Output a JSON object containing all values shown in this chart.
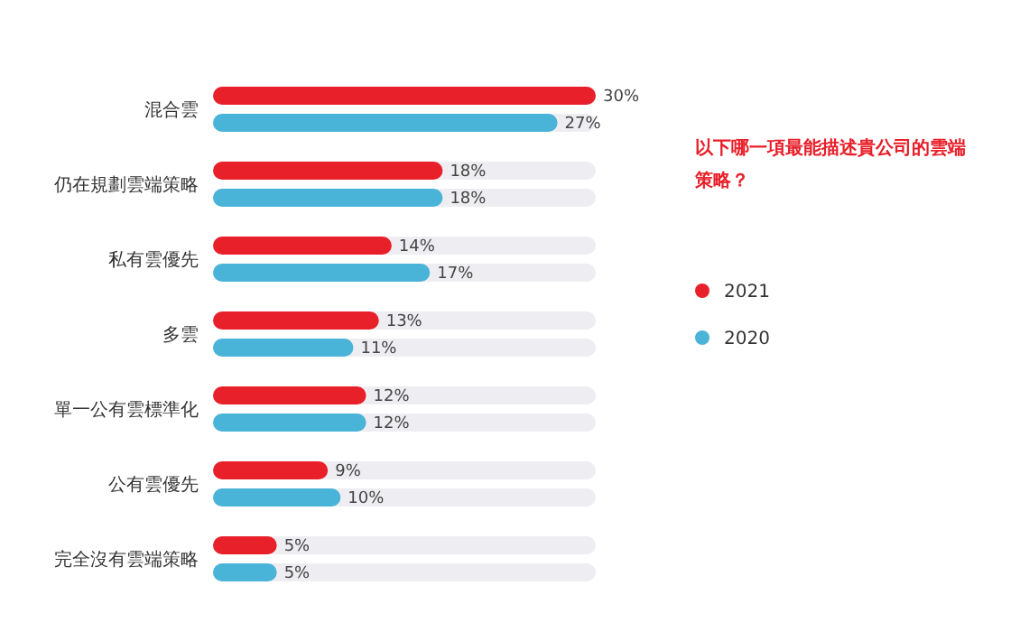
{
  "chart_data": {
    "type": "bar",
    "orientation": "horizontal",
    "legend_title": "以下哪一項最能描述貴公司的雲端策略？",
    "legend": "right",
    "categories": [
      "混合雲",
      "仍在規劃雲端策略",
      "私有雲優先",
      "多雲",
      "單一公有雲標準化",
      "公有雲優先",
      "完全沒有雲端策略"
    ],
    "xlim": [
      0,
      30
    ],
    "tick_labels": "y",
    "series": [
      {
        "name": "2021",
        "color": "#e8202a",
        "values": [
          30,
          18,
          14,
          13,
          12,
          9,
          5
        ],
        "value_labels": [
          "30%",
          "18%",
          "14%",
          "13%",
          "12%",
          "9%",
          "5%"
        ]
      },
      {
        "name": "2020",
        "color": "#4ab3d8",
        "values": [
          27,
          18,
          17,
          11,
          12,
          10,
          5
        ],
        "value_labels": [
          "27%",
          "18%",
          "17%",
          "11%",
          "12%",
          "10%",
          "5%"
        ]
      }
    ]
  }
}
